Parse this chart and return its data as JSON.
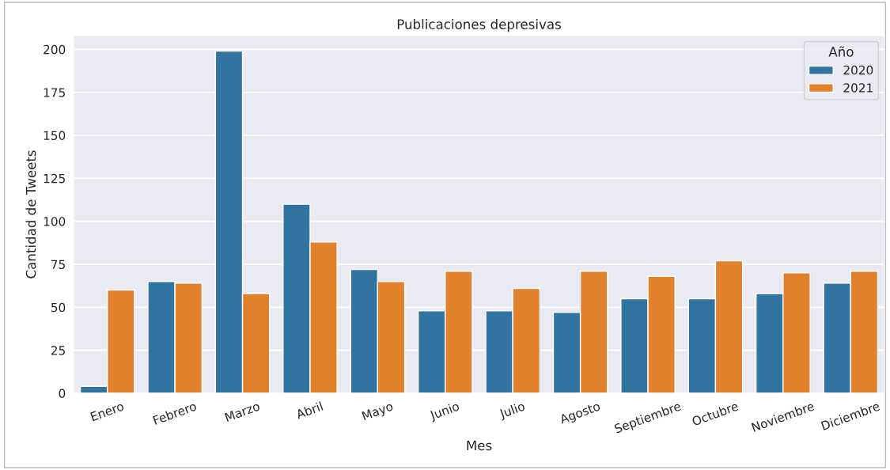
{
  "chart_data": {
    "type": "bar",
    "title": "Publicaciones depresivas",
    "xlabel": "Mes",
    "ylabel": "Cantidad de Tweets",
    "legend_title": "Año",
    "categories": [
      "Enero",
      "Febrero",
      "Marzo",
      "Abril",
      "Mayo",
      "Junio",
      "Julio",
      "Agosto",
      "Septiembre",
      "Octubre",
      "Noviembre",
      "Diciembre"
    ],
    "series": [
      {
        "name": "2020",
        "color": "#3274a1",
        "values": [
          4,
          65,
          199,
          110,
          72,
          48,
          48,
          47,
          55,
          55,
          58,
          64
        ]
      },
      {
        "name": "2021",
        "color": "#e1812c",
        "values": [
          60,
          64,
          58,
          88,
          65,
          71,
          61,
          71,
          68,
          77,
          70,
          71
        ]
      }
    ],
    "ylim": [
      0,
      208
    ],
    "yticks": [
      0,
      25,
      50,
      75,
      100,
      125,
      150,
      175,
      200
    ],
    "grid": "y",
    "legend": "top right"
  }
}
